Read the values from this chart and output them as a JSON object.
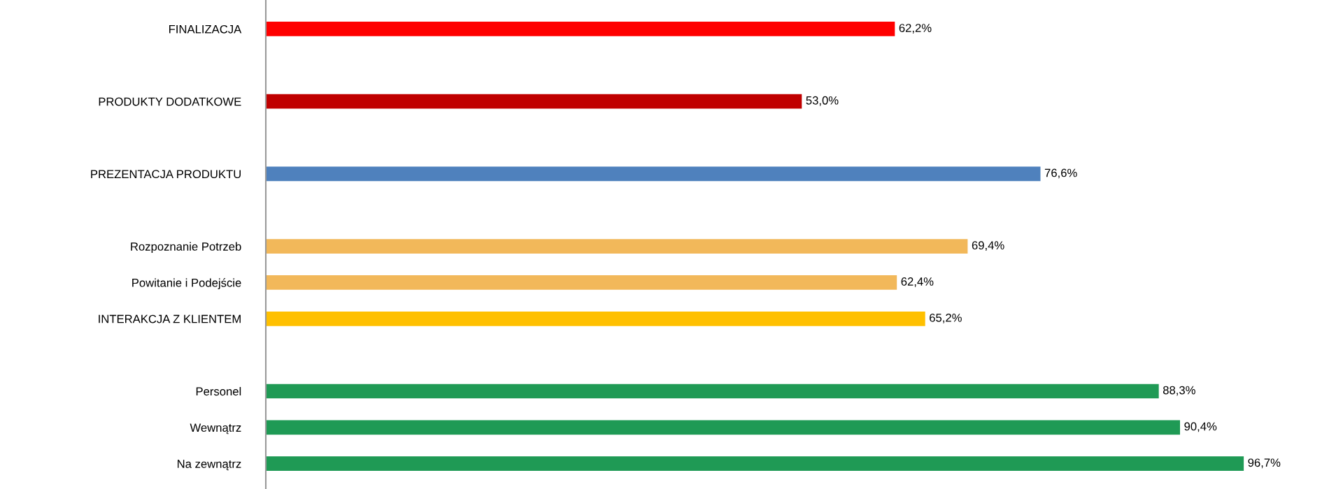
{
  "chart_data": {
    "type": "bar",
    "orientation": "horizontal",
    "categories": [
      "FINALIZACJA",
      null,
      "PRODUKTY DODATKOWE",
      null,
      "PREZENTACJA PRODUKTU",
      null,
      "Rozpoznanie Potrzeb",
      "Powitanie i Podejście",
      "INTERAKCJA Z KLIENTEM",
      null,
      "Personel",
      "Wewnątrz",
      "Na zewnątrz"
    ],
    "values": [
      62.2,
      null,
      53.0,
      null,
      76.6,
      null,
      69.4,
      62.4,
      65.2,
      null,
      88.3,
      90.4,
      96.7
    ],
    "value_labels": [
      "62,2%",
      null,
      "53,0%",
      null,
      "76,6%",
      null,
      "69,4%",
      "62,4%",
      "65,2%",
      null,
      "88,3%",
      "90,4%",
      "96,7%"
    ],
    "colors": [
      "#ff0000",
      null,
      "#c00000",
      null,
      "#4f81bd",
      null,
      "#f2b85a",
      "#f2b85a",
      "#ffc000",
      null,
      "#1f9a55",
      "#1f9a55",
      "#1f9a55"
    ],
    "grid": false,
    "legend": false
  }
}
